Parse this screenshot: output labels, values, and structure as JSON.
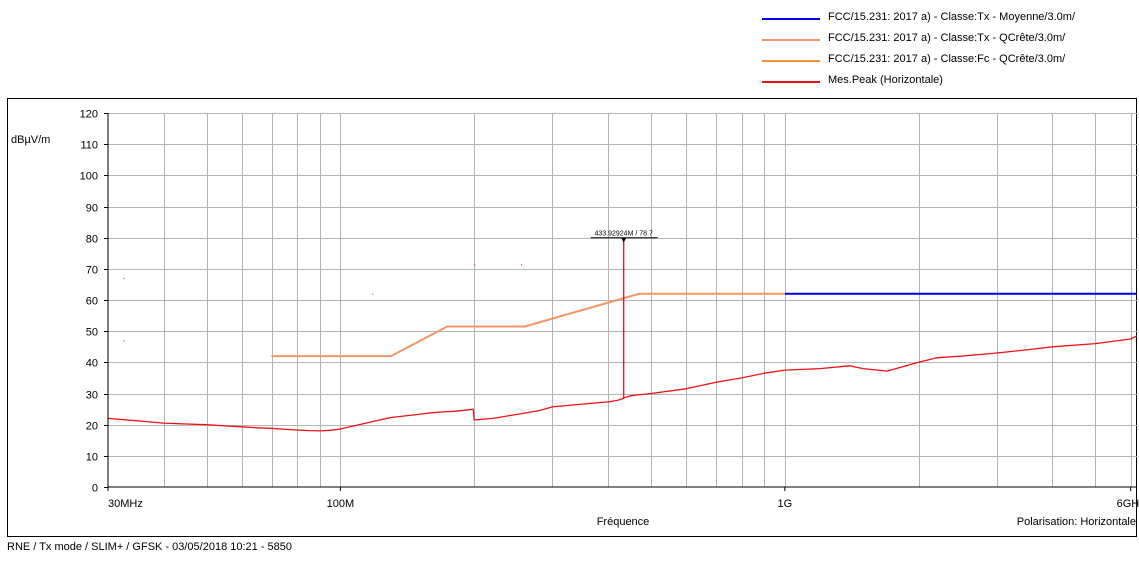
{
  "chart_data": {
    "type": "line",
    "xscale": "log",
    "xlim": [
      30,
      6200
    ],
    "ylim": [
      0,
      120
    ],
    "yunit": "dBµV/m",
    "xlabel": "Fréquence",
    "x_note": "Polarisation: Horizontale",
    "grid": true,
    "legend_position": "top-right",
    "y_ticks": [
      0,
      10,
      20,
      30,
      40,
      50,
      60,
      70,
      80,
      90,
      100,
      110,
      120
    ],
    "x_tick_labels": [
      {
        "x": 30,
        "label": "30MHz"
      },
      {
        "x": 100,
        "label": "100M"
      },
      {
        "x": 1000,
        "label": "1G"
      },
      {
        "x": 6000,
        "label": "6GHz"
      }
    ],
    "x_grid": [
      40,
      50,
      60,
      70,
      80,
      90,
      100,
      200,
      300,
      400,
      500,
      600,
      700,
      800,
      900,
      1000,
      2000,
      3000,
      4000,
      5000,
      6000
    ],
    "series": [
      {
        "name": "FCC/15.231: 2017 a) - Classe:Tx - Moyenne/3.0m/",
        "color": "#0000e0",
        "x": [
          1000,
          6200
        ],
        "y": [
          62,
          62
        ]
      },
      {
        "name": "FCC/15.231: 2017 a) - Classe:Tx - QCrête/3.0m/",
        "color": "#f2966a",
        "x": [
          70,
          130,
          174,
          260,
          470,
          1000
        ],
        "y": [
          42,
          42,
          51.5,
          51.5,
          62,
          62
        ]
      },
      {
        "name": "FCC/15.231: 2017 a) - Classe:Fc - QCrête/3.0m/",
        "color": "#f39433",
        "x": [],
        "y": []
      },
      {
        "name": "Mes.Peak (Horizontale)",
        "color": "#ee1111",
        "x": [
          30,
          35,
          40,
          45,
          50,
          55,
          60,
          65,
          70,
          75,
          80,
          85,
          90,
          95,
          100,
          110,
          120,
          130,
          140,
          150,
          160,
          170,
          180,
          190,
          199,
          200,
          220,
          250,
          280,
          300,
          350,
          400,
          420,
          433.9,
          433.93,
          433.96,
          450,
          500,
          600,
          700,
          800,
          900,
          1000,
          1200,
          1400,
          1500,
          1700,
          2000,
          2200,
          2500,
          3000,
          3500,
          4000,
          5000,
          6000,
          6200
        ],
        "y": [
          22,
          21.2,
          20.5,
          20.2,
          20,
          19.6,
          19.3,
          19,
          18.8,
          18.5,
          18.3,
          18.1,
          18,
          18.2,
          18.6,
          20,
          21.2,
          22.3,
          22.8,
          23.3,
          23.8,
          24.1,
          24.3,
          24.6,
          25,
          21.5,
          22,
          23.3,
          24.5,
          25.7,
          26.6,
          27.3,
          27.8,
          28.5,
          78.7,
          28.6,
          29.3,
          30,
          31.5,
          33.6,
          35,
          36.5,
          37.5,
          38,
          38.9,
          38,
          37.2,
          40,
          41.5,
          42,
          43,
          44,
          45,
          46,
          47.5,
          48.5
        ]
      }
    ],
    "marker": {
      "x": 433.92924,
      "y": 78.7,
      "label": "433.92924M / 78.7"
    },
    "stray_points": [
      [
        32.5,
        67
      ],
      [
        32.5,
        47
      ],
      [
        118,
        62
      ],
      [
        200,
        71.5
      ],
      [
        255,
        71.5
      ]
    ]
  },
  "footer": "RNE / Tx mode / SLIM+ / GFSK - 03/05/2018 10:21 - 5850"
}
